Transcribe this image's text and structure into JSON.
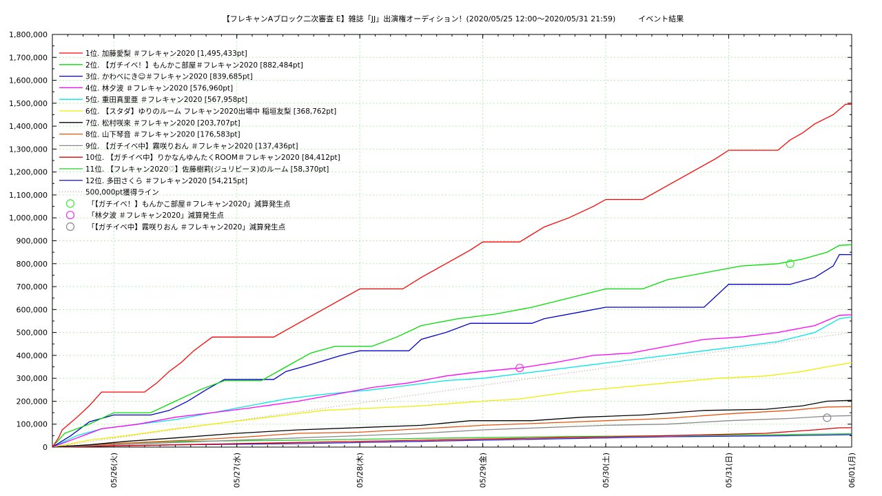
{
  "chart_data": {
    "type": "line",
    "title": "【フレキャンAブロック二次審査 E】雑誌「JJ」出演権オーディション！(2020/05/25 12:00〜2020/05/31 21:59)　　　イベント結果",
    "xlabel": "",
    "ylabel": "",
    "xlim": [
      0,
      6.5
    ],
    "ylim": [
      0,
      1800000
    ],
    "grid": true,
    "legend_position": "top-left",
    "y_ticks": [
      "0",
      "100,000",
      "200,000",
      "300,000",
      "400,000",
      "500,000",
      "600,000",
      "700,000",
      "800,000",
      "900,000",
      "1,000,000",
      "1,100,000",
      "1,200,000",
      "1,300,000",
      "1,400,000",
      "1,500,000",
      "1,600,000",
      "1,700,000",
      "1,800,000"
    ],
    "x_ticks": [
      {
        "label": "05/26(火)",
        "x": 0.5
      },
      {
        "label": "05/27(水)",
        "x": 1.5
      },
      {
        "label": "05/28(木)",
        "x": 2.5
      },
      {
        "label": "05/29(金)",
        "x": 3.5
      },
      {
        "label": "05/30(土)",
        "x": 4.5
      },
      {
        "label": "05/31(日)",
        "x": 5.5
      },
      {
        "label": "06/01(月)",
        "x": 6.5
      }
    ],
    "series": [
      {
        "name": "1位. 加藤愛梨 ＃フレキャン2020 [1,495,433pt]",
        "color": "#ff0000",
        "points": [
          [
            0,
            0
          ],
          [
            0.05,
            40000
          ],
          [
            0.08,
            75000
          ],
          [
            0.2,
            130000
          ],
          [
            0.3,
            180000
          ],
          [
            0.4,
            240000
          ],
          [
            0.75,
            240000
          ],
          [
            0.85,
            280000
          ],
          [
            0.95,
            330000
          ],
          [
            1.05,
            370000
          ],
          [
            1.15,
            420000
          ],
          [
            1.3,
            480000
          ],
          [
            1.8,
            480000
          ],
          [
            2.0,
            540000
          ],
          [
            2.2,
            600000
          ],
          [
            2.4,
            660000
          ],
          [
            2.5,
            690000
          ],
          [
            2.85,
            690000
          ],
          [
            3.0,
            740000
          ],
          [
            3.2,
            800000
          ],
          [
            3.4,
            860000
          ],
          [
            3.5,
            895000
          ],
          [
            3.8,
            895000
          ],
          [
            4.0,
            960000
          ],
          [
            4.2,
            1000000
          ],
          [
            4.4,
            1050000
          ],
          [
            4.5,
            1080000
          ],
          [
            4.8,
            1080000
          ],
          [
            5.0,
            1140000
          ],
          [
            5.2,
            1200000
          ],
          [
            5.4,
            1260000
          ],
          [
            5.5,
            1295000
          ],
          [
            5.9,
            1295000
          ],
          [
            6.0,
            1340000
          ],
          [
            6.1,
            1370000
          ],
          [
            6.2,
            1410000
          ],
          [
            6.35,
            1450000
          ],
          [
            6.45,
            1495433
          ],
          [
            6.5,
            1495433
          ]
        ]
      },
      {
        "name": "2位. 【ガチイベ！】もんかこ部屋＃フレキャン2020 [882,484pt]",
        "color": "#00dd00",
        "points": [
          [
            0,
            0
          ],
          [
            0.1,
            60000
          ],
          [
            0.3,
            100000
          ],
          [
            0.5,
            150000
          ],
          [
            0.8,
            150000
          ],
          [
            1.0,
            200000
          ],
          [
            1.2,
            250000
          ],
          [
            1.4,
            290000
          ],
          [
            1.7,
            290000
          ],
          [
            1.9,
            350000
          ],
          [
            2.1,
            410000
          ],
          [
            2.3,
            440000
          ],
          [
            2.6,
            440000
          ],
          [
            2.8,
            480000
          ],
          [
            3.0,
            530000
          ],
          [
            3.3,
            560000
          ],
          [
            3.6,
            580000
          ],
          [
            3.9,
            610000
          ],
          [
            4.2,
            650000
          ],
          [
            4.5,
            690000
          ],
          [
            4.8,
            690000
          ],
          [
            5.0,
            730000
          ],
          [
            5.3,
            760000
          ],
          [
            5.6,
            790000
          ],
          [
            5.9,
            800000
          ],
          [
            6.1,
            820000
          ],
          [
            6.3,
            850000
          ],
          [
            6.4,
            880000
          ],
          [
            6.5,
            882484
          ]
        ]
      },
      {
        "name": "3位. かわべにき☺＃フレキャン2020 [839,685pt]",
        "color": "#0000cc",
        "points": [
          [
            0,
            0
          ],
          [
            0.15,
            50000
          ],
          [
            0.3,
            110000
          ],
          [
            0.5,
            140000
          ],
          [
            0.8,
            140000
          ],
          [
            0.95,
            160000
          ],
          [
            1.1,
            200000
          ],
          [
            1.25,
            250000
          ],
          [
            1.4,
            295000
          ],
          [
            1.8,
            295000
          ],
          [
            1.9,
            330000
          ],
          [
            2.1,
            360000
          ],
          [
            2.35,
            400000
          ],
          [
            2.5,
            420000
          ],
          [
            2.9,
            420000
          ],
          [
            3.0,
            470000
          ],
          [
            3.2,
            500000
          ],
          [
            3.4,
            540000
          ],
          [
            3.9,
            540000
          ],
          [
            4.0,
            560000
          ],
          [
            4.3,
            590000
          ],
          [
            4.5,
            610000
          ],
          [
            5.3,
            610000
          ],
          [
            5.5,
            710000
          ],
          [
            6.0,
            710000
          ],
          [
            6.2,
            740000
          ],
          [
            6.35,
            790000
          ],
          [
            6.4,
            840000
          ],
          [
            6.5,
            839685
          ]
        ]
      },
      {
        "name": "4位. 林夕波 ＃フレキャン2020 [576,960pt]",
        "color": "#ff00ff",
        "points": [
          [
            0,
            0
          ],
          [
            0.2,
            40000
          ],
          [
            0.4,
            80000
          ],
          [
            0.7,
            100000
          ],
          [
            1.0,
            130000
          ],
          [
            1.3,
            150000
          ],
          [
            1.6,
            170000
          ],
          [
            2.0,
            200000
          ],
          [
            2.3,
            230000
          ],
          [
            2.6,
            260000
          ],
          [
            2.9,
            280000
          ],
          [
            3.2,
            310000
          ],
          [
            3.5,
            330000
          ],
          [
            3.8,
            345000
          ],
          [
            4.1,
            370000
          ],
          [
            4.4,
            400000
          ],
          [
            4.7,
            410000
          ],
          [
            5.0,
            440000
          ],
          [
            5.3,
            470000
          ],
          [
            5.6,
            480000
          ],
          [
            5.9,
            500000
          ],
          [
            6.2,
            530000
          ],
          [
            6.4,
            575000
          ],
          [
            6.5,
            576960
          ]
        ]
      },
      {
        "name": "5位. 重田真里亜 ＃フレキャン2020 [567,958pt]",
        "color": "#00e5e5",
        "points": [
          [
            0,
            0
          ],
          [
            0.2,
            50000
          ],
          [
            0.4,
            80000
          ],
          [
            0.7,
            100000
          ],
          [
            1.0,
            120000
          ],
          [
            1.3,
            150000
          ],
          [
            1.6,
            180000
          ],
          [
            1.9,
            210000
          ],
          [
            2.2,
            230000
          ],
          [
            2.6,
            250000
          ],
          [
            2.9,
            270000
          ],
          [
            3.2,
            290000
          ],
          [
            3.5,
            300000
          ],
          [
            3.8,
            320000
          ],
          [
            4.1,
            340000
          ],
          [
            4.4,
            360000
          ],
          [
            4.7,
            380000
          ],
          [
            5.0,
            400000
          ],
          [
            5.3,
            420000
          ],
          [
            5.6,
            440000
          ],
          [
            5.9,
            460000
          ],
          [
            6.2,
            500000
          ],
          [
            6.4,
            560000
          ],
          [
            6.5,
            567958
          ]
        ]
      },
      {
        "name": "6位. 【スタダ】ゆりのルーム フレキャン2020出場中 稲垣友梨 [368,762pt]",
        "color": "#eeee00",
        "points": [
          [
            0,
            0
          ],
          [
            0.3,
            30000
          ],
          [
            0.6,
            50000
          ],
          [
            1.0,
            80000
          ],
          [
            1.3,
            100000
          ],
          [
            1.6,
            120000
          ],
          [
            1.9,
            140000
          ],
          [
            2.2,
            160000
          ],
          [
            2.6,
            170000
          ],
          [
            3.0,
            180000
          ],
          [
            3.5,
            200000
          ],
          [
            3.8,
            210000
          ],
          [
            4.2,
            240000
          ],
          [
            4.6,
            260000
          ],
          [
            5.0,
            280000
          ],
          [
            5.4,
            300000
          ],
          [
            5.8,
            310000
          ],
          [
            6.1,
            330000
          ],
          [
            6.3,
            350000
          ],
          [
            6.5,
            368762
          ]
        ]
      },
      {
        "name": "7位. 松村咲來 ＃フレキャン2020 [203,707pt]",
        "color": "#000000",
        "points": [
          [
            0,
            0
          ],
          [
            0.3,
            10000
          ],
          [
            0.6,
            25000
          ],
          [
            1.0,
            40000
          ],
          [
            1.5,
            60000
          ],
          [
            2.0,
            75000
          ],
          [
            2.5,
            85000
          ],
          [
            3.0,
            95000
          ],
          [
            3.4,
            115000
          ],
          [
            3.9,
            115000
          ],
          [
            4.3,
            130000
          ],
          [
            4.8,
            140000
          ],
          [
            5.3,
            160000
          ],
          [
            5.8,
            165000
          ],
          [
            6.1,
            180000
          ],
          [
            6.3,
            200000
          ],
          [
            6.5,
            203707
          ]
        ]
      },
      {
        "name": "8位. 山下琴音 ＃フレキャン2020 [176,583pt]",
        "color": "#e6550d",
        "points": [
          [
            0,
            0
          ],
          [
            0.3,
            10000
          ],
          [
            0.7,
            20000
          ],
          [
            1.1,
            30000
          ],
          [
            1.6,
            45000
          ],
          [
            2.0,
            60000
          ],
          [
            2.5,
            65000
          ],
          [
            3.0,
            80000
          ],
          [
            3.5,
            95000
          ],
          [
            4.0,
            105000
          ],
          [
            4.5,
            115000
          ],
          [
            5.0,
            125000
          ],
          [
            5.5,
            145000
          ],
          [
            6.0,
            160000
          ],
          [
            6.3,
            175000
          ],
          [
            6.5,
            176583
          ]
        ]
      },
      {
        "name": "9位. 【ガチイベ中】霧咲りおん ＃フレキャン2020 [137,436pt]",
        "color": "#888888",
        "points": [
          [
            0,
            0
          ],
          [
            0.5,
            10000
          ],
          [
            1.0,
            20000
          ],
          [
            1.5,
            30000
          ],
          [
            2.0,
            40000
          ],
          [
            2.5,
            50000
          ],
          [
            3.0,
            60000
          ],
          [
            3.5,
            75000
          ],
          [
            4.0,
            85000
          ],
          [
            4.5,
            95000
          ],
          [
            5.0,
            100000
          ],
          [
            5.5,
            115000
          ],
          [
            6.0,
            125000
          ],
          [
            6.3,
            135000
          ],
          [
            6.5,
            137436
          ]
        ]
      },
      {
        "name": "10位. 【ガチイベ中】りかなんゆんたくROOM＃フレキャン2020 [84,412pt]",
        "color": "#dd0000",
        "points": [
          [
            0,
            0
          ],
          [
            1.0,
            10000
          ],
          [
            2.0,
            20000
          ],
          [
            3.0,
            30000
          ],
          [
            4.0,
            40000
          ],
          [
            5.0,
            50000
          ],
          [
            5.8,
            60000
          ],
          [
            6.2,
            75000
          ],
          [
            6.4,
            84000
          ],
          [
            6.5,
            84412
          ]
        ]
      },
      {
        "name": "11位. 【フレキャン2020♡】佐藤樹莉(ジュリビーヌ)のルーム [58,370pt]",
        "color": "#22cc22",
        "points": [
          [
            0,
            0
          ],
          [
            0.5,
            15000
          ],
          [
            1.0,
            25000
          ],
          [
            2.0,
            30000
          ],
          [
            3.0,
            38000
          ],
          [
            4.0,
            45000
          ],
          [
            5.0,
            50000
          ],
          [
            6.0,
            55000
          ],
          [
            6.5,
            58370
          ]
        ]
      },
      {
        "name": "12位. 多田さくら ＃フレキャン2020 [54,215pt]",
        "color": "#2222cc",
        "points": [
          [
            0,
            0
          ],
          [
            0.5,
            5000
          ],
          [
            1.0,
            10000
          ],
          [
            2.0,
            15000
          ],
          [
            3.0,
            25000
          ],
          [
            4.0,
            35000
          ],
          [
            5.0,
            45000
          ],
          [
            6.0,
            50000
          ],
          [
            6.5,
            54215
          ]
        ]
      },
      {
        "name": "500,000pt獲得ライン",
        "color": "#c08080",
        "dotted": true,
        "points": [
          [
            0,
            0
          ],
          [
            6.5,
            500000
          ]
        ]
      }
    ],
    "markers": [
      {
        "name": "「【ガチイベ！】もんかこ部屋＃フレキャン2020」減算発生点",
        "color": "#33ee33",
        "x": 6.0,
        "y": 800000
      },
      {
        "name": "「林夕波 ＃フレキャン2020」減算発生点",
        "color": "#ee33ee",
        "x": 3.8,
        "y": 345000
      },
      {
        "name": "「【ガチイベ中】霧咲りおん ＃フレキャン2020」減算発生点",
        "color": "#888888",
        "x": 6.3,
        "y": 128000
      }
    ]
  }
}
